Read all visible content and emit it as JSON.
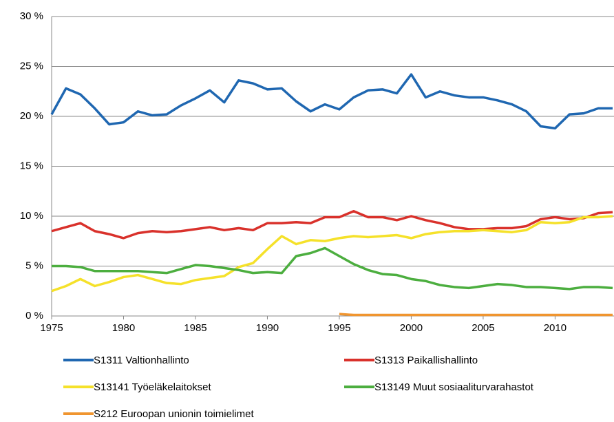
{
  "chart_data": {
    "type": "line",
    "x": [
      1975,
      1976,
      1977,
      1978,
      1979,
      1980,
      1981,
      1982,
      1983,
      1984,
      1985,
      1986,
      1987,
      1988,
      1989,
      1990,
      1991,
      1992,
      1993,
      1994,
      1995,
      1996,
      1997,
      1998,
      1999,
      2000,
      2001,
      2002,
      2003,
      2004,
      2005,
      2006,
      2007,
      2008,
      2009,
      2010,
      2011,
      2012,
      2013,
      2014
    ],
    "xlim": [
      1975,
      2014
    ],
    "xticks": [
      1975,
      1980,
      1985,
      1990,
      1995,
      2000,
      2005,
      2010
    ],
    "ylim": [
      0,
      30
    ],
    "yticks": [
      {
        "value": 0,
        "label": "0 %"
      },
      {
        "value": 5,
        "label": "5 %"
      },
      {
        "value": 10,
        "label": "10 %"
      },
      {
        "value": 15,
        "label": "15 %"
      },
      {
        "value": 20,
        "label": "20 %"
      },
      {
        "value": 25,
        "label": "25 %"
      },
      {
        "value": 30,
        "label": "30 %"
      }
    ],
    "grid": true,
    "legend": "bottom",
    "series": [
      {
        "name": "S1311 Valtionhallinto",
        "color": "#1f67b1",
        "values": [
          20.2,
          22.8,
          22.2,
          20.8,
          19.2,
          19.4,
          20.5,
          20.1,
          20.2,
          21.1,
          21.8,
          22.6,
          21.4,
          23.6,
          23.3,
          22.7,
          22.8,
          21.5,
          20.5,
          21.2,
          20.7,
          21.9,
          22.6,
          22.7,
          22.3,
          24.2,
          21.9,
          22.5,
          22.1,
          21.9,
          21.9,
          21.6,
          21.2,
          20.5,
          19.0,
          18.8,
          20.2,
          20.3,
          20.8,
          20.8
        ]
      },
      {
        "name": "S1313 Paikallishallinto",
        "color": "#d9312b",
        "values": [
          8.5,
          8.9,
          9.3,
          8.5,
          8.2,
          7.8,
          8.3,
          8.5,
          8.4,
          8.5,
          8.7,
          8.9,
          8.6,
          8.8,
          8.6,
          9.3,
          9.3,
          9.4,
          9.3,
          9.9,
          9.9,
          10.5,
          9.9,
          9.9,
          9.6,
          10.0,
          9.6,
          9.3,
          8.9,
          8.7,
          8.7,
          8.8,
          8.8,
          9.0,
          9.7,
          9.9,
          9.7,
          9.8,
          10.3,
          10.4
        ]
      },
      {
        "name": "S13141 Työeläkelaitokset",
        "color": "#f5e12a",
        "values": [
          2.5,
          3.0,
          3.7,
          3.0,
          3.4,
          3.9,
          4.1,
          3.7,
          3.3,
          3.2,
          3.6,
          3.8,
          4.0,
          4.9,
          5.3,
          6.7,
          8.0,
          7.2,
          7.6,
          7.5,
          7.8,
          8.0,
          7.9,
          8.0,
          8.1,
          7.8,
          8.2,
          8.4,
          8.5,
          8.5,
          8.6,
          8.5,
          8.4,
          8.6,
          9.4,
          9.3,
          9.4,
          9.9,
          9.9,
          10.0
        ]
      },
      {
        "name": "S13149 Muut sosiaaliturvarahastot",
        "color": "#4cae3f",
        "values": [
          5.0,
          5.0,
          4.9,
          4.5,
          4.5,
          4.5,
          4.5,
          4.4,
          4.3,
          4.7,
          5.1,
          5.0,
          4.8,
          4.6,
          4.3,
          4.4,
          4.3,
          6.0,
          6.3,
          6.8,
          6.0,
          5.2,
          4.6,
          4.2,
          4.1,
          3.7,
          3.5,
          3.1,
          2.9,
          2.8,
          3.0,
          3.2,
          3.1,
          2.9,
          2.9,
          2.8,
          2.7,
          2.9,
          2.9,
          2.8
        ]
      },
      {
        "name": "S212 Euroopan unionin toimielimet",
        "color": "#f0952f",
        "values": [
          null,
          null,
          null,
          null,
          null,
          null,
          null,
          null,
          null,
          null,
          null,
          null,
          null,
          null,
          null,
          null,
          null,
          null,
          null,
          null,
          0.2,
          0.1,
          0.1,
          0.1,
          0.1,
          0.1,
          0.1,
          0.1,
          0.1,
          0.1,
          0.1,
          0.1,
          0.1,
          0.1,
          0.1,
          0.1,
          0.1,
          0.1,
          0.1,
          0.1
        ]
      }
    ]
  }
}
